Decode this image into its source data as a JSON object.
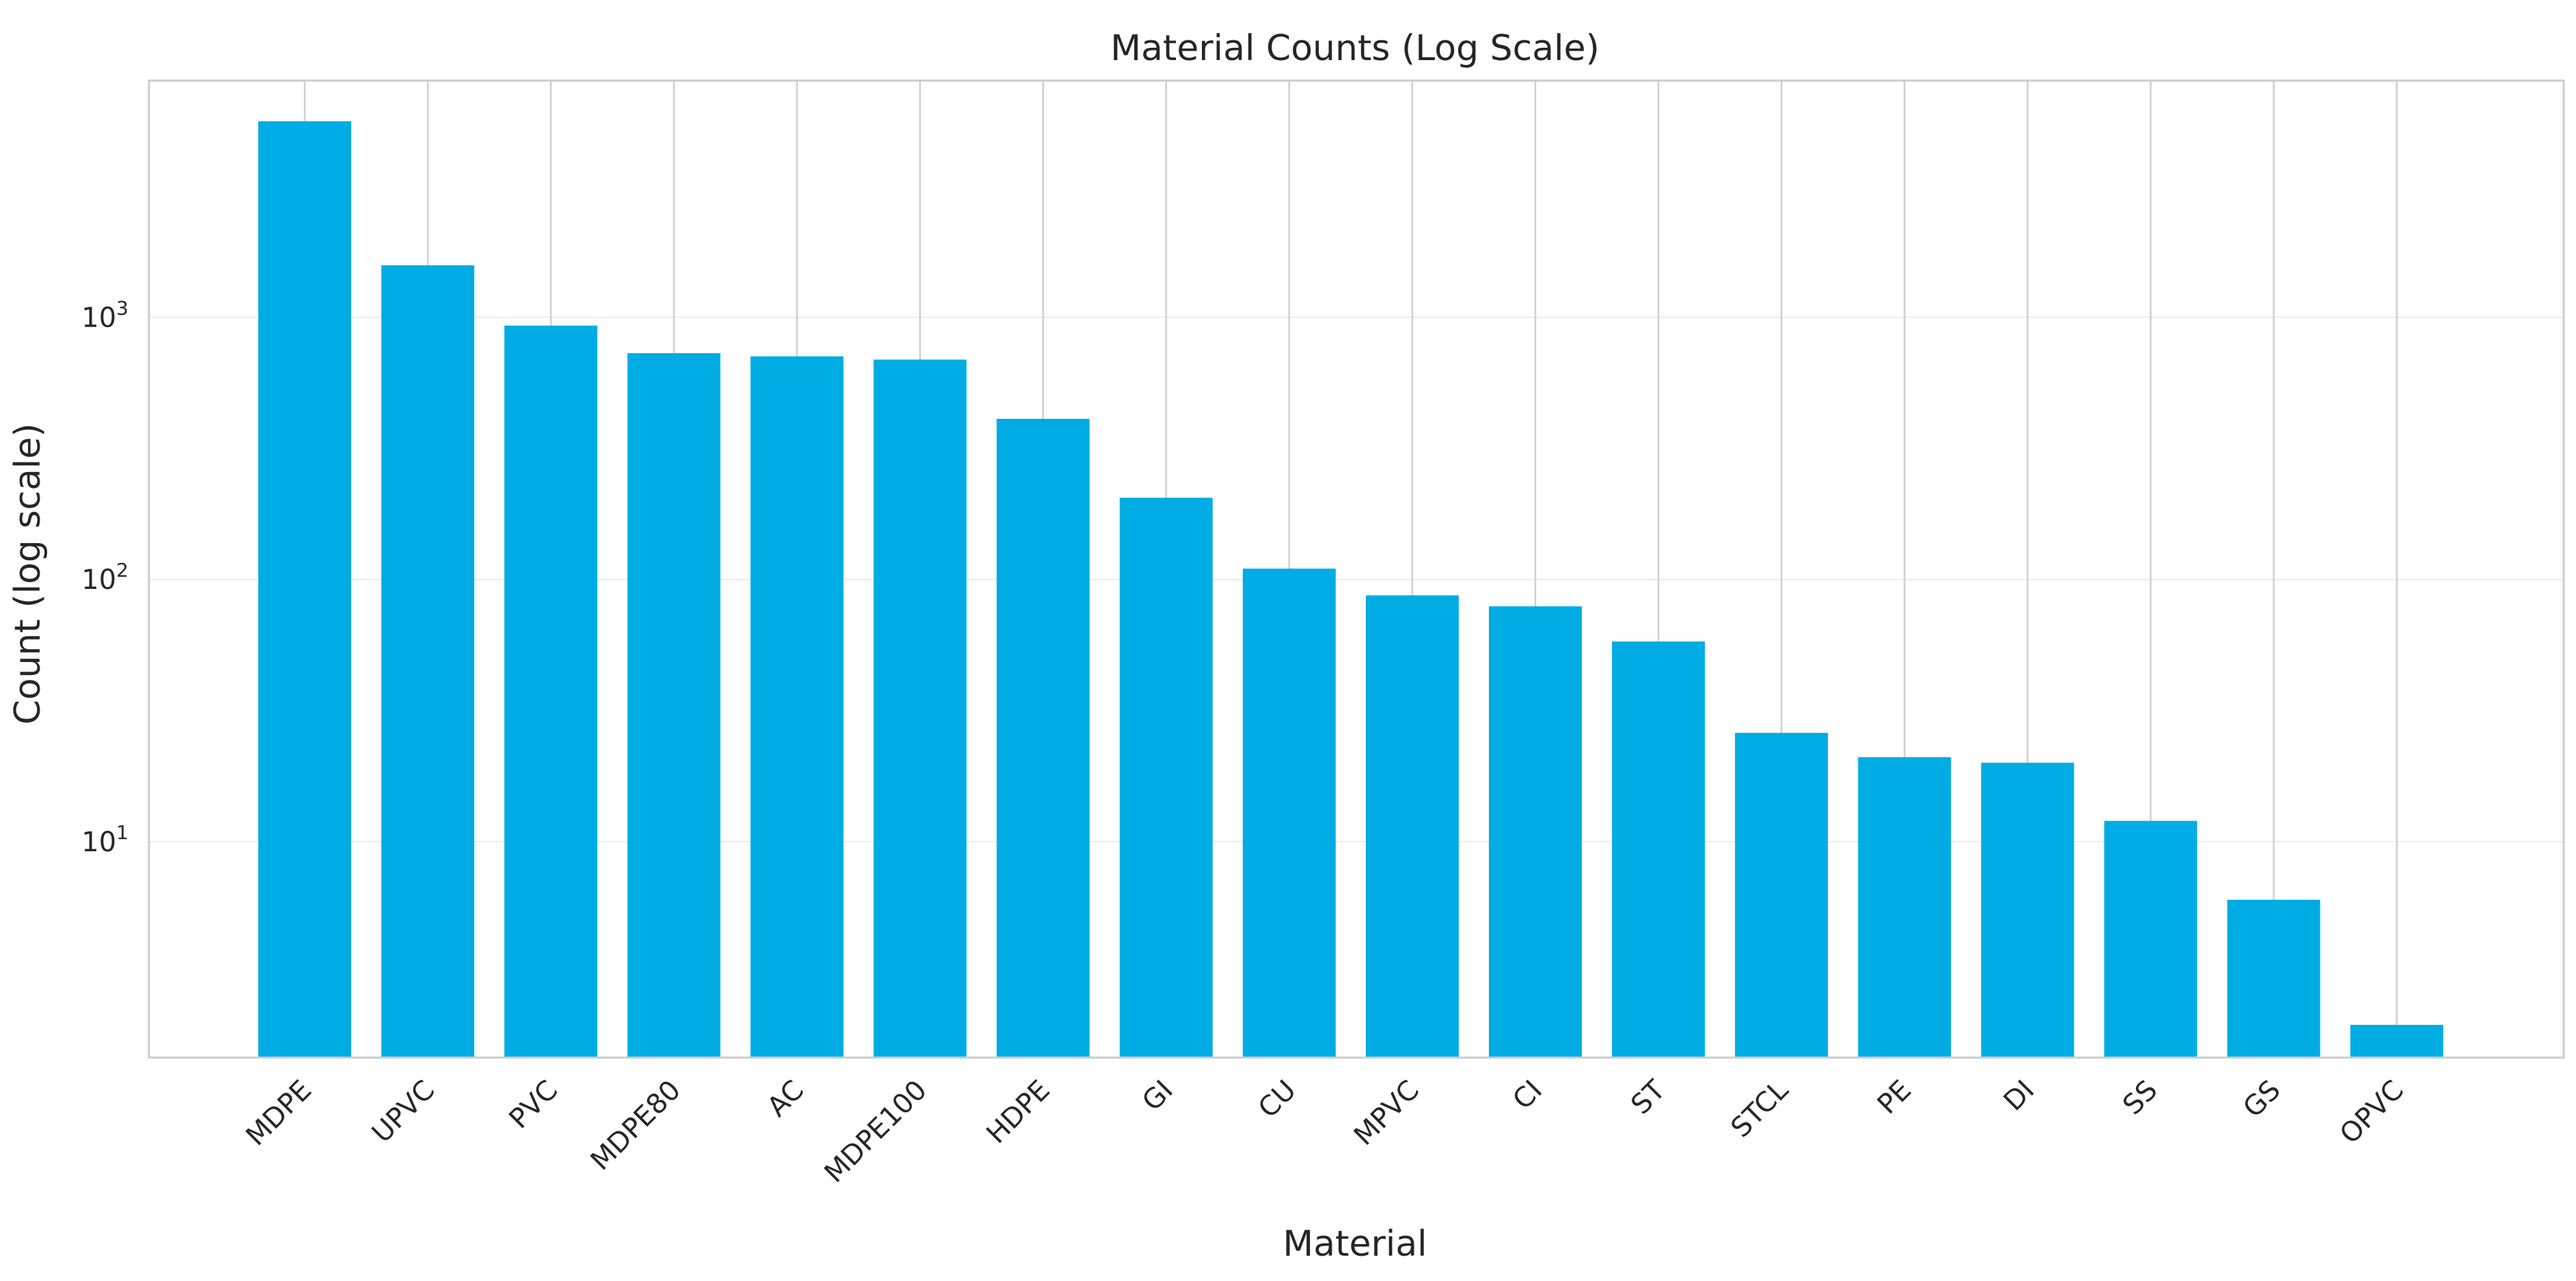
{
  "chart_data": {
    "type": "bar",
    "title": "Material Counts (Log Scale)",
    "xlabel": "Material",
    "ylabel": "Count (log scale)",
    "yscale": "log",
    "ylim": [
      1.5,
      8000
    ],
    "ytick_base": "10",
    "yticks": [
      {
        "value": 10,
        "exponent": "1"
      },
      {
        "value": 100,
        "exponent": "2"
      },
      {
        "value": 1000,
        "exponent": "3"
      }
    ],
    "grid": true,
    "bar_color": "#00ace4",
    "categories": [
      "MDPE",
      "UPVC",
      "PVC",
      "MDPE80",
      "AC",
      "MDPE100",
      "HDPE",
      "GI",
      "CU",
      "MPVC",
      "CI",
      "ST",
      "STCL",
      "PE",
      "DI",
      "SS",
      "GS",
      "OPVC"
    ],
    "values": [
      5600,
      1580,
      930,
      730,
      710,
      690,
      410,
      205,
      110,
      87,
      79,
      58,
      26,
      21,
      20,
      12,
      6,
      2
    ]
  }
}
